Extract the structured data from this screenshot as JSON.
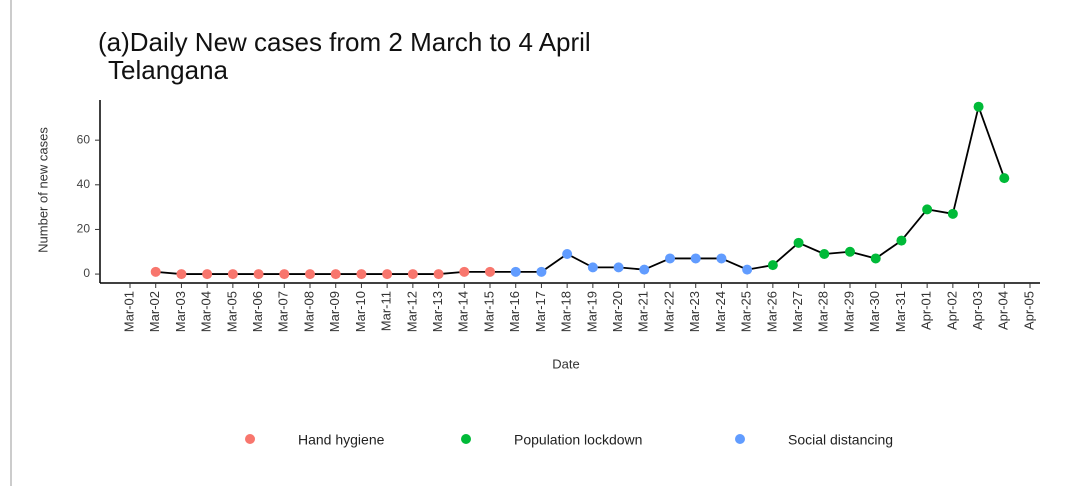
{
  "chart_data": {
    "type": "line",
    "title": "(a)Daily New cases from 2 March to 4 April",
    "subtitle": "Telangana",
    "x_label": "Date",
    "y_label": "Number of new cases",
    "line_color": "#000000",
    "categories": [
      "Mar-01",
      "Mar-02",
      "Mar-03",
      "Mar-04",
      "Mar-05",
      "Mar-06",
      "Mar-07",
      "Mar-08",
      "Mar-09",
      "Mar-10",
      "Mar-11",
      "Mar-12",
      "Mar-13",
      "Mar-14",
      "Mar-15",
      "Mar-16",
      "Mar-17",
      "Mar-18",
      "Mar-19",
      "Mar-20",
      "Mar-21",
      "Mar-22",
      "Mar-23",
      "Mar-24",
      "Mar-25",
      "Mar-26",
      "Mar-27",
      "Mar-28",
      "Mar-29",
      "Mar-30",
      "Mar-31",
      "Apr-01",
      "Apr-02",
      "Apr-03",
      "Apr-04",
      "Apr-05"
    ],
    "series": [
      {
        "name": "Hand hygiene",
        "color": "#f8766d",
        "values": [
          null,
          1,
          0,
          0,
          0,
          0,
          0,
          0,
          0,
          0,
          0,
          0,
          0,
          1,
          1,
          null,
          null,
          null,
          null,
          null,
          null,
          null,
          null,
          null,
          null,
          null,
          null,
          null,
          null,
          null,
          null,
          null,
          null,
          null,
          null,
          null
        ]
      },
      {
        "name": "Population lockdown",
        "color": "#00ba38",
        "values": [
          null,
          null,
          null,
          null,
          null,
          null,
          null,
          null,
          null,
          null,
          null,
          null,
          null,
          null,
          null,
          null,
          null,
          null,
          null,
          null,
          null,
          null,
          null,
          null,
          null,
          4,
          14,
          9,
          10,
          7,
          15,
          29,
          27,
          75,
          43,
          null
        ]
      },
      {
        "name": "Social distancing",
        "color": "#619cff",
        "values": [
          null,
          null,
          null,
          null,
          null,
          null,
          null,
          null,
          null,
          null,
          null,
          null,
          null,
          null,
          null,
          1,
          1,
          9,
          3,
          3,
          2,
          7,
          7,
          7,
          2,
          null,
          null,
          null,
          null,
          null,
          null,
          null,
          null,
          null,
          null,
          null
        ]
      }
    ],
    "ylim": [
      -4,
      78
    ],
    "yticks": [
      0,
      20,
      40,
      60
    ]
  }
}
